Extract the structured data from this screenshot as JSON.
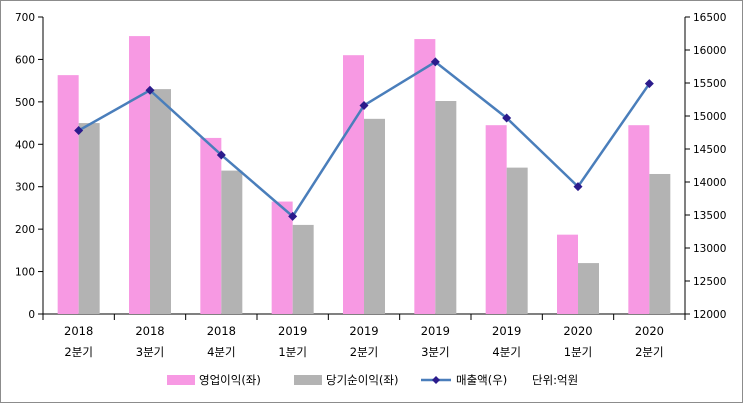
{
  "chart_data": {
    "type": "bar",
    "categories": [
      [
        "2018",
        "2분기"
      ],
      [
        "2018",
        "3분기"
      ],
      [
        "2018",
        "4분기"
      ],
      [
        "2019",
        "1분기"
      ],
      [
        "2019",
        "2분기"
      ],
      [
        "2019",
        "3분기"
      ],
      [
        "2019",
        "4분기"
      ],
      [
        "2020",
        "1분기"
      ],
      [
        "2020",
        "2분기"
      ]
    ],
    "series": [
      {
        "name": "영업이익(좌)",
        "kind": "bar",
        "axis": "left",
        "color": "#f799e3",
        "values": [
          563,
          655,
          415,
          265,
          610,
          648,
          445,
          187,
          445
        ]
      },
      {
        "name": "당기순이익(좌)",
        "kind": "bar",
        "axis": "left",
        "color": "#b3b3b3",
        "values": [
          450,
          530,
          338,
          210,
          460,
          502,
          345,
          120,
          330
        ]
      },
      {
        "name": "매출액(우)",
        "kind": "line",
        "axis": "right",
        "color": "#4a7ebb",
        "marker_color": "#2b1b8c",
        "values": [
          14780,
          15390,
          14410,
          13480,
          15160,
          15820,
          14970,
          13930,
          15490
        ]
      }
    ],
    "y_left": {
      "min": 0,
      "max": 700,
      "step": 100
    },
    "y_right": {
      "min": 12000,
      "max": 16500,
      "step": 500
    },
    "unit_note": "단위:억원",
    "legend_position": "bottom",
    "grid": false
  }
}
